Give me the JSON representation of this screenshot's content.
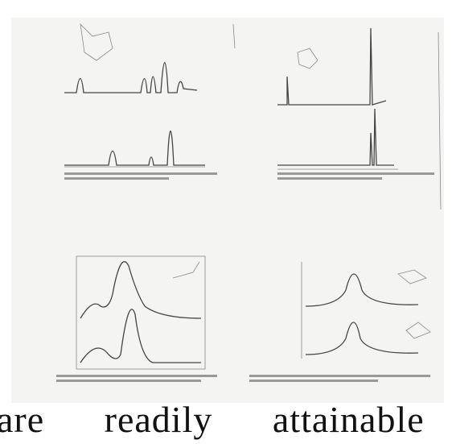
{
  "body": {
    "text": "are readily attainable"
  }
}
